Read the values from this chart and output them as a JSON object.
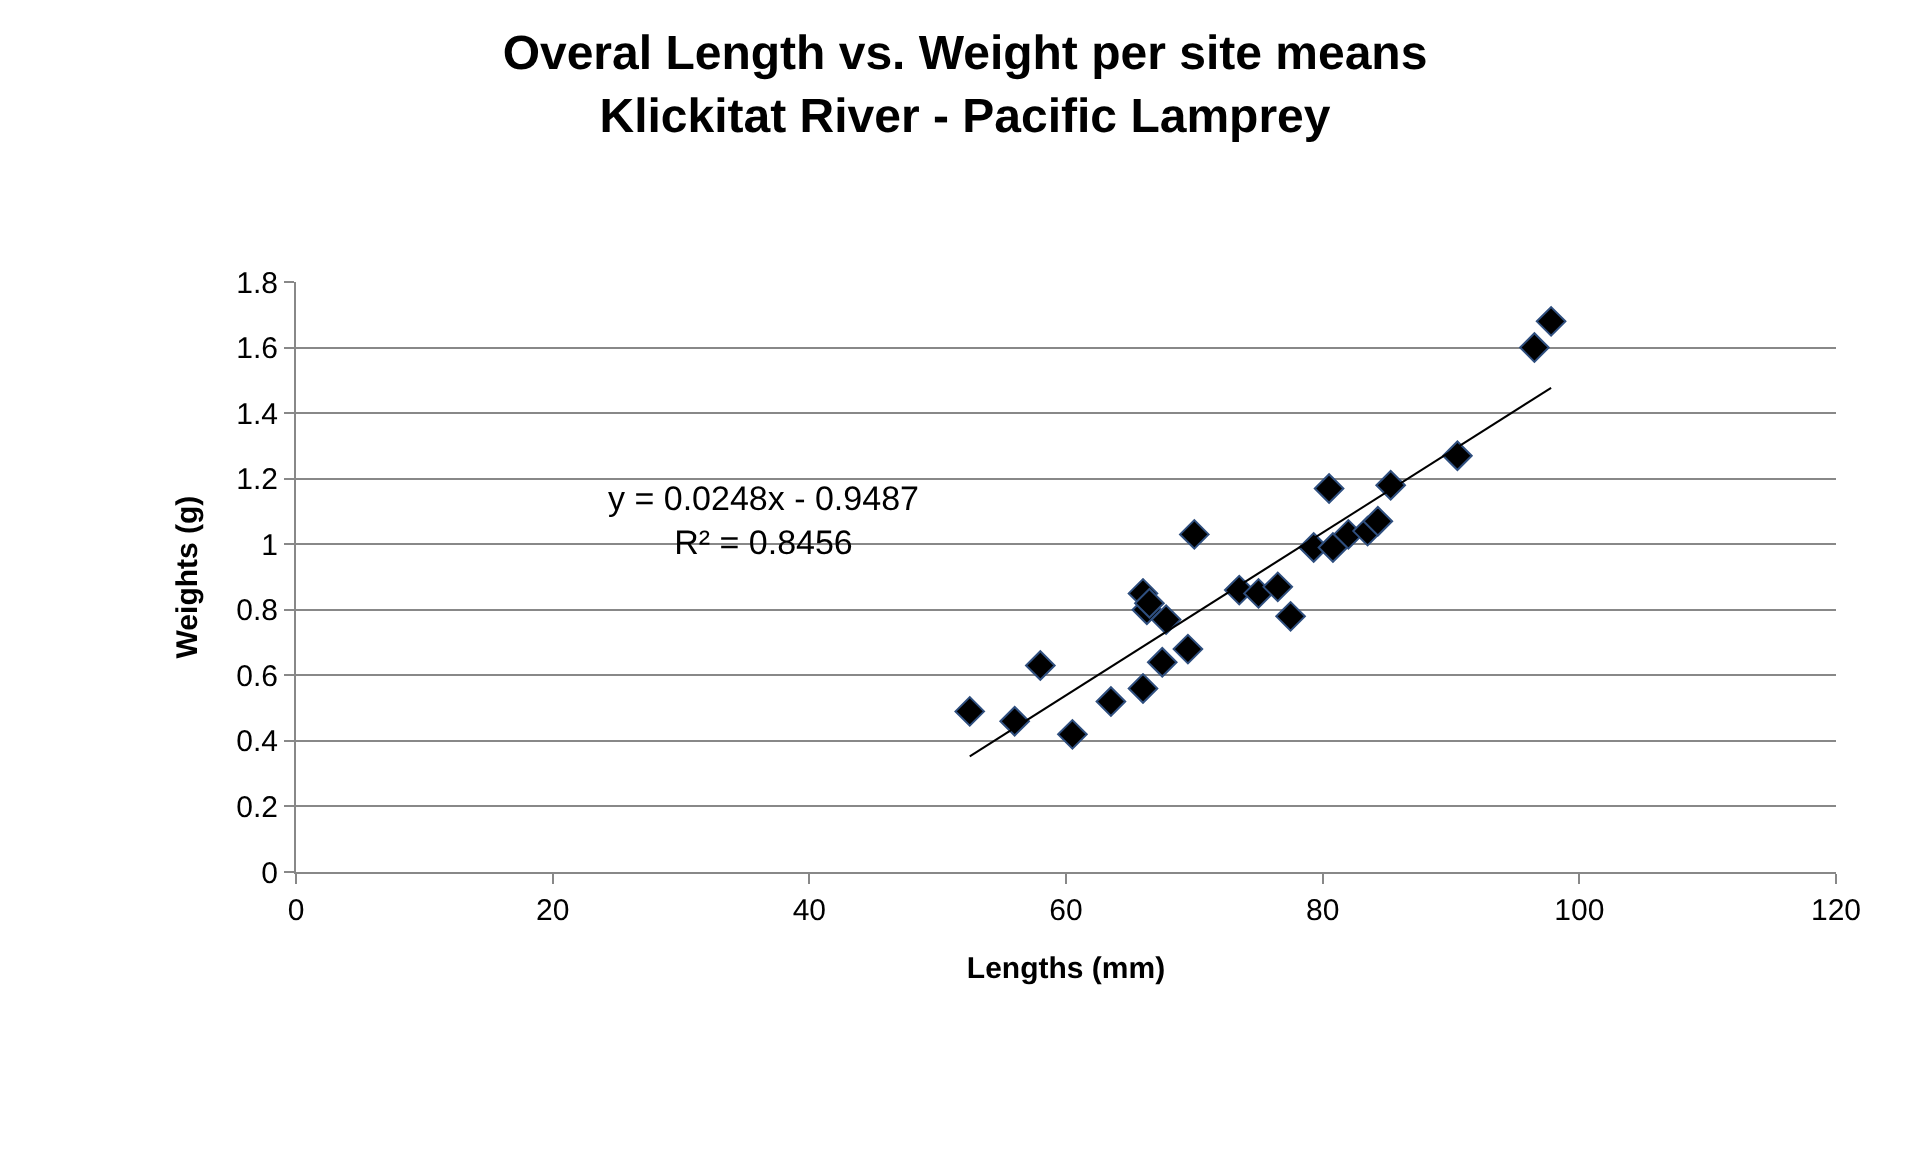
{
  "chart_data": {
    "type": "scatter",
    "title": "Overal Length vs. Weight per site means\nKlickitat River - Pacific Lamprey",
    "xlabel": "Lengths (mm)",
    "ylabel": "Weights (g)",
    "xlim": [
      0,
      120
    ],
    "xticks": [
      0,
      20,
      40,
      60,
      80,
      100,
      120
    ],
    "ylim": [
      0,
      1.8
    ],
    "yticks": [
      0,
      0.2,
      0.4,
      0.6,
      0.8,
      1,
      1.2,
      1.4,
      1.6,
      1.8
    ],
    "grid": "y",
    "marker": "diamond",
    "series": [
      {
        "color": "#000000",
        "x": [
          52.5,
          56,
          58,
          60.5,
          63.5,
          66,
          66,
          66.3,
          66.5,
          67.5,
          67.8,
          69.5,
          70,
          73.5,
          75,
          76.5,
          77.5,
          79.3,
          80.5,
          80.8,
          82,
          83.5,
          84.3,
          85.3,
          90.5,
          96.5,
          97.8
        ],
        "values": [
          0.49,
          0.46,
          0.63,
          0.42,
          0.52,
          0.56,
          0.85,
          0.8,
          0.82,
          0.64,
          0.77,
          0.68,
          1.03,
          0.86,
          0.85,
          0.87,
          0.78,
          0.99,
          1.17,
          0.99,
          1.03,
          1.04,
          1.07,
          1.18,
          1.27,
          1.6,
          1.68
        ]
      },
      {
        "type": "line",
        "color": "#000000",
        "marker": "none",
        "line_style": "solid",
        "x": [
          52.5,
          97.8
        ],
        "values": [
          0.353,
          1.477
        ]
      }
    ],
    "annotations": [
      "y = 0.0248x - 0.9487\nR² = 0.8456"
    ]
  }
}
